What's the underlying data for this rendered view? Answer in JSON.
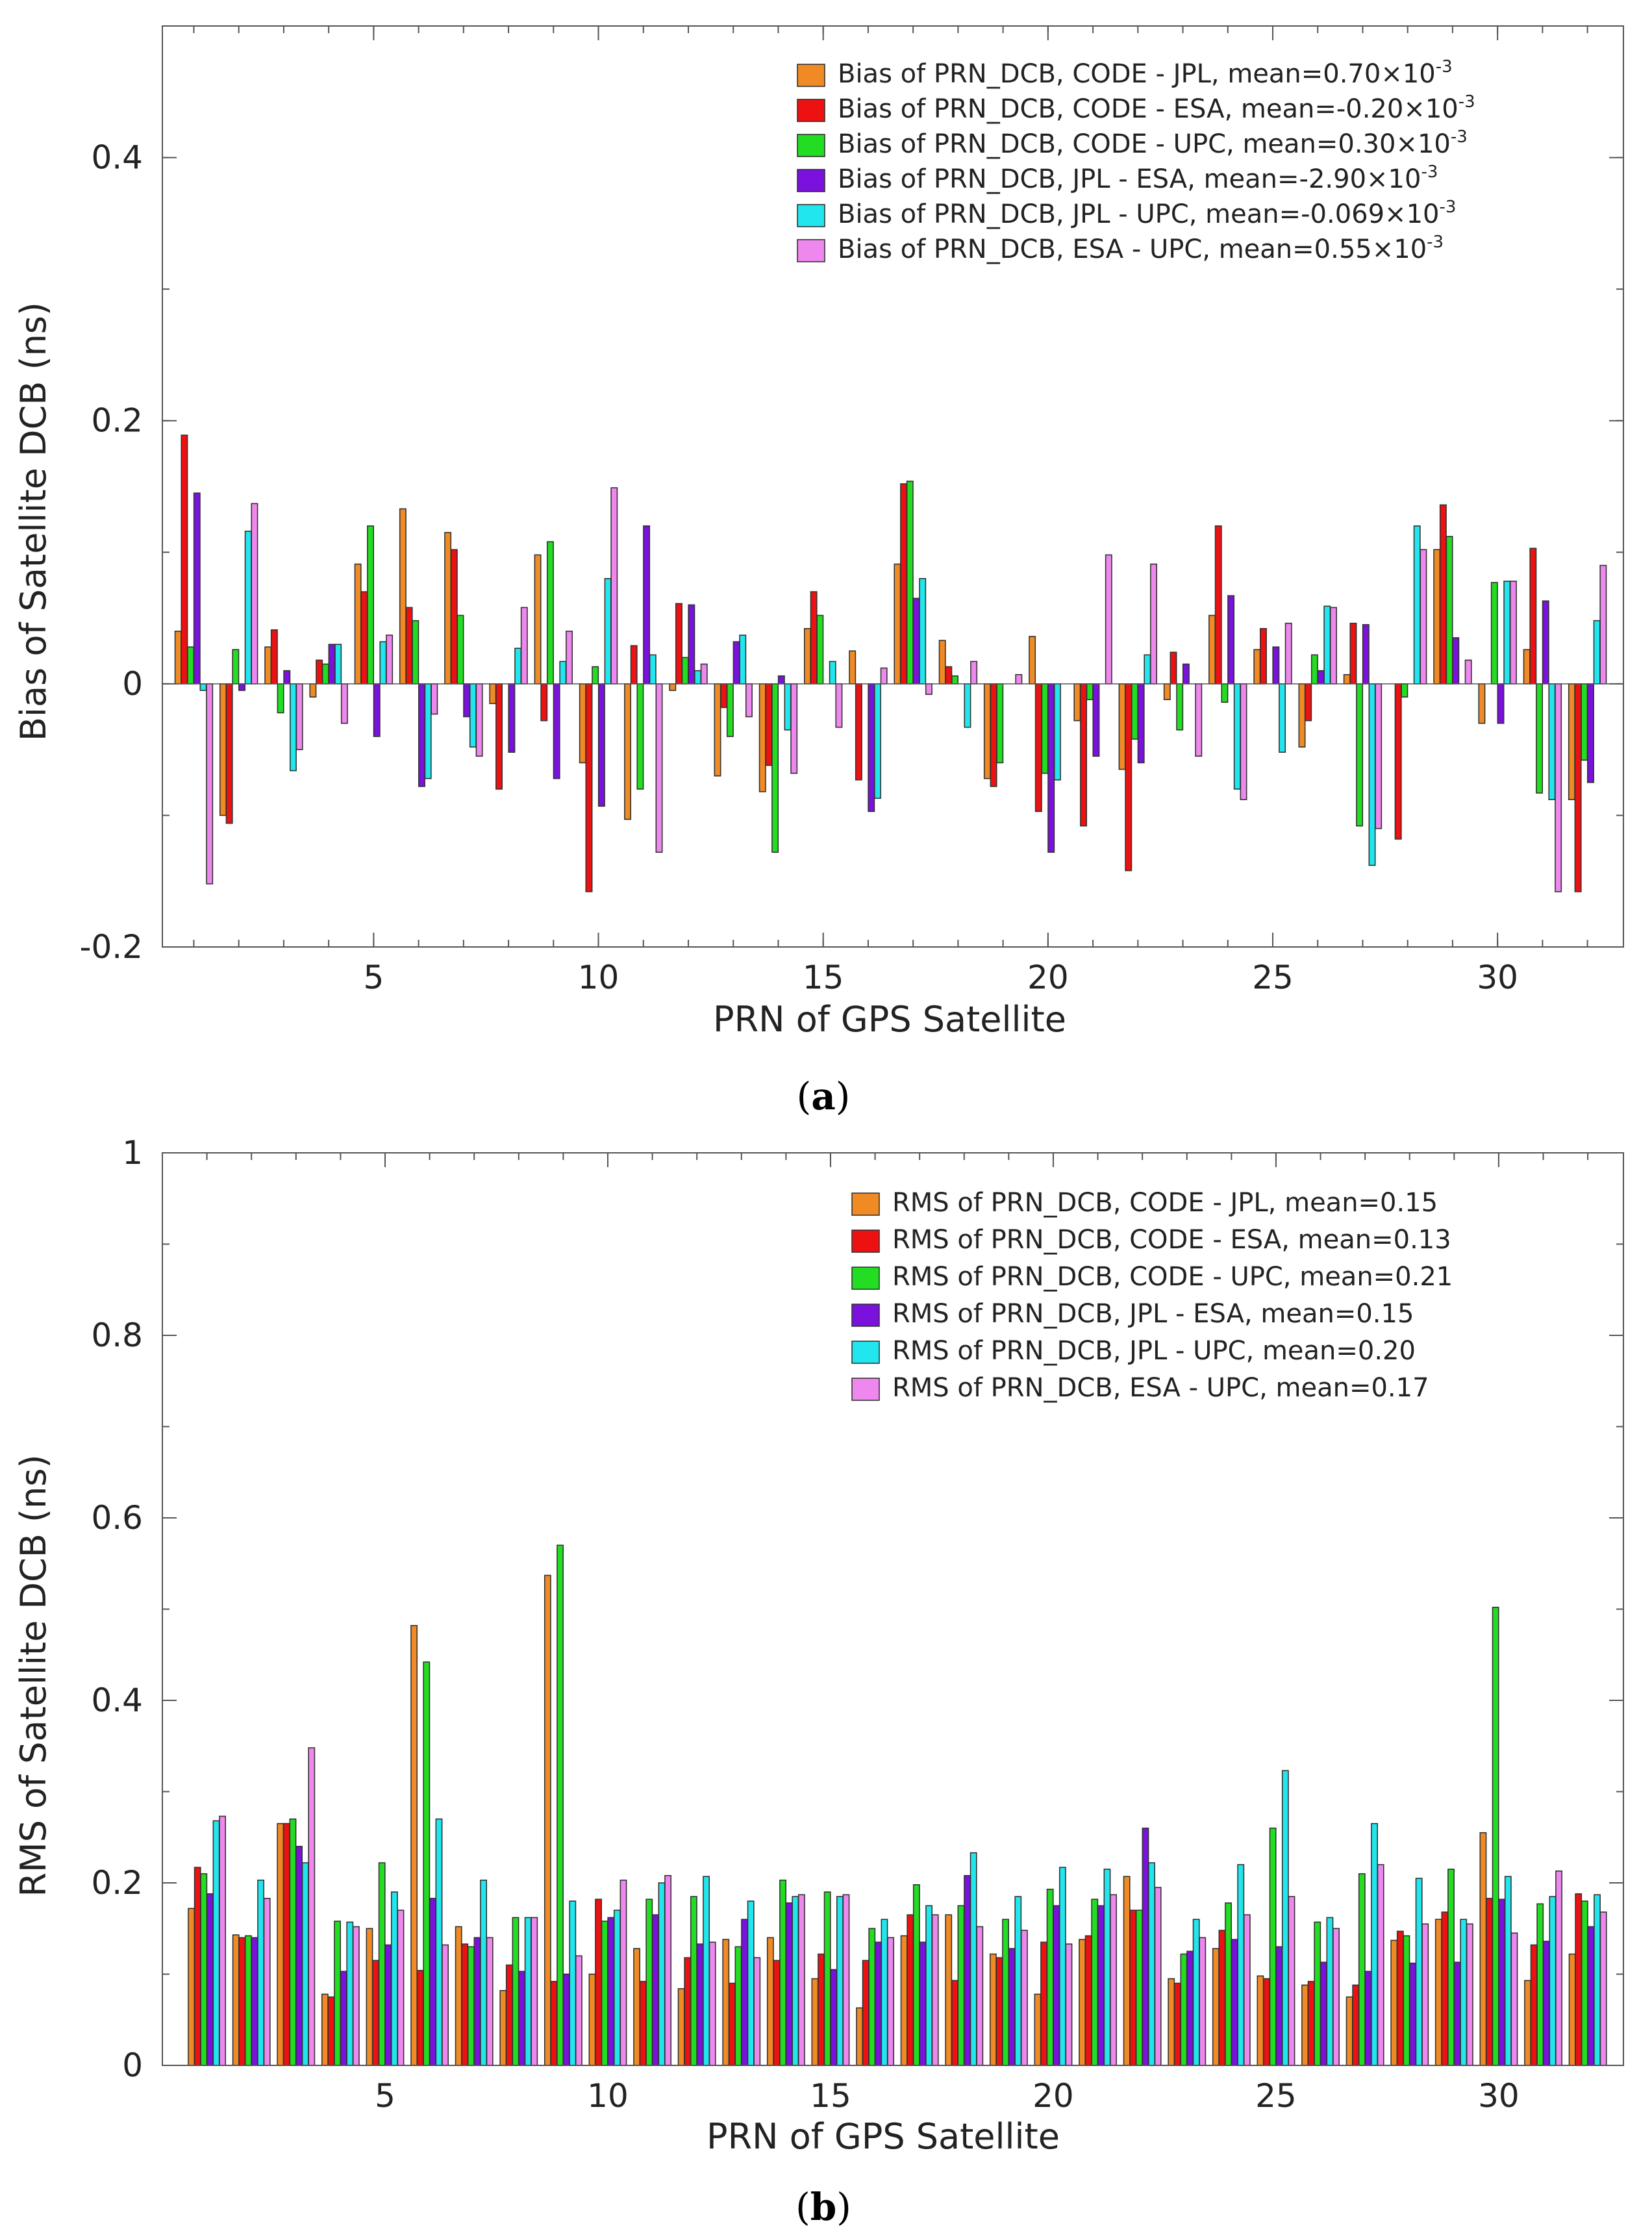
{
  "chart_data": [
    {
      "type": "bar",
      "panel": "a",
      "caption": "(a)",
      "xlabel": "PRN of GPS Satellite",
      "ylabel": "Bias of Satellite DCB (ns)",
      "xlim": [
        0.3,
        32.8
      ],
      "ylim": [
        -0.2,
        0.5
      ],
      "xticks": [
        5,
        10,
        15,
        20,
        25,
        30
      ],
      "yticks": [
        -0.2,
        0,
        0.2,
        0.4
      ],
      "ytick_labels": [
        "-0.2",
        "0",
        "0.2",
        "0.4"
      ],
      "legend_position": "top-right",
      "series": [
        {
          "name": "Bias of PRN_DCB, CODE - JPL, mean=0.70×10",
          "superscript": "-3",
          "color": "#f08a24",
          "values": [
            0.04,
            -0.1,
            0.028,
            -0.01,
            0.091,
            0.133,
            0.115,
            -0.015,
            0.098,
            -0.06,
            -0.103,
            -0.005,
            -0.07,
            -0.082,
            0.042,
            0.025,
            0.091,
            0.033,
            -0.072,
            0.036,
            -0.028,
            -0.065,
            -0.012,
            0.052,
            0.026,
            -0.048,
            0.007,
            0.0,
            0.102,
            -0.03,
            0.026,
            -0.088
          ]
        },
        {
          "name": "Bias of PRN_DCB, CODE - ESA, mean=-0.20×10",
          "superscript": "-3",
          "color": "#ee1111",
          "values": [
            0.189,
            -0.106,
            0.041,
            0.018,
            0.07,
            0.058,
            0.102,
            -0.08,
            -0.028,
            -0.158,
            0.029,
            0.061,
            -0.018,
            -0.062,
            0.07,
            -0.073,
            0.152,
            0.013,
            -0.078,
            -0.097,
            -0.108,
            -0.142,
            0.024,
            0.12,
            0.042,
            -0.028,
            0.046,
            -0.118,
            0.136,
            0.0,
            0.103,
            -0.158
          ]
        },
        {
          "name": "Bias of PRN_DCB, CODE - UPC, mean=0.30×10",
          "superscript": "-3",
          "color": "#22dd22",
          "values": [
            0.028,
            0.026,
            -0.022,
            0.015,
            0.12,
            0.048,
            0.052,
            0.0,
            0.108,
            0.013,
            -0.08,
            0.02,
            -0.04,
            -0.128,
            0.052,
            0.0,
            0.154,
            0.006,
            -0.06,
            -0.068,
            -0.012,
            -0.042,
            -0.035,
            -0.014,
            0.0,
            0.022,
            -0.108,
            -0.01,
            0.112,
            0.077,
            -0.083,
            -0.058
          ]
        },
        {
          "name": "Bias of PRN_DCB, JPL - ESA, mean=-2.90×10",
          "superscript": "-3",
          "color": "#7a11dd",
          "values": [
            0.145,
            -0.005,
            0.01,
            0.03,
            -0.04,
            -0.078,
            -0.025,
            -0.052,
            -0.072,
            -0.093,
            0.12,
            0.06,
            0.032,
            0.006,
            0.0,
            -0.097,
            0.065,
            0.0,
            0.0,
            -0.128,
            -0.055,
            -0.06,
            0.015,
            0.067,
            0.028,
            0.01,
            0.045,
            0.0,
            0.035,
            -0.03,
            0.063,
            -0.075
          ]
        },
        {
          "name": "Bias of PRN_DCB, JPL - UPC, mean=-0.069×10",
          "superscript": "-3",
          "color": "#22e6ee",
          "values": [
            -0.005,
            0.116,
            -0.066,
            0.03,
            0.032,
            -0.072,
            -0.048,
            0.027,
            0.017,
            0.08,
            0.022,
            0.01,
            0.037,
            -0.035,
            0.017,
            -0.087,
            0.08,
            -0.033,
            0.0,
            -0.073,
            0.0,
            0.022,
            0.0,
            -0.08,
            -0.052,
            0.059,
            -0.138,
            0.12,
            0.0,
            0.078,
            -0.088,
            0.048
          ]
        },
        {
          "name": "Bias of PRN_DCB, ESA - UPC, mean=0.55×10",
          "superscript": "-3",
          "color": "#ee88ee",
          "values": [
            -0.152,
            0.137,
            -0.05,
            -0.03,
            0.037,
            -0.023,
            -0.055,
            0.058,
            0.04,
            0.149,
            -0.128,
            0.015,
            -0.025,
            -0.068,
            -0.033,
            0.012,
            -0.008,
            0.017,
            0.007,
            0.0,
            0.098,
            0.091,
            -0.055,
            -0.088,
            0.046,
            0.058,
            -0.11,
            0.102,
            0.018,
            0.078,
            -0.158,
            0.09
          ]
        }
      ]
    },
    {
      "type": "bar",
      "panel": "b",
      "caption": "(b)",
      "xlabel": "PRN of GPS Satellite",
      "ylabel": "RMS of Satellite DCB (ns)",
      "xlim": [
        0.0,
        32.8
      ],
      "ylim": [
        0,
        1
      ],
      "xticks": [
        5,
        10,
        15,
        20,
        25,
        30
      ],
      "yticks": [
        0,
        0.2,
        0.4,
        0.6,
        0.8,
        1
      ],
      "ytick_labels": [
        "0",
        "0.2",
        "0.4",
        "0.6",
        "0.8",
        "1"
      ],
      "legend_position": "top-right",
      "series": [
        {
          "name": "RMS of PRN_DCB, CODE - JPL, mean=0.15",
          "superscript": "",
          "color": "#f08a24",
          "values": [
            0.172,
            0.143,
            0.265,
            0.078,
            0.15,
            0.482,
            0.152,
            0.082,
            0.537,
            0.1,
            0.128,
            0.084,
            0.138,
            0.14,
            0.095,
            0.063,
            0.142,
            0.165,
            0.122,
            0.078,
            0.138,
            0.207,
            0.095,
            0.128,
            0.098,
            0.088,
            0.075,
            0.137,
            0.16,
            0.255,
            0.093,
            0.122
          ]
        },
        {
          "name": "RMS of PRN_DCB, CODE - ESA, mean=0.13",
          "superscript": "",
          "color": "#ee1111",
          "values": [
            0.217,
            0.14,
            0.265,
            0.075,
            0.115,
            0.104,
            0.133,
            0.11,
            0.092,
            0.182,
            0.092,
            0.118,
            0.09,
            0.115,
            0.122,
            0.115,
            0.165,
            0.093,
            0.118,
            0.135,
            0.142,
            0.17,
            0.09,
            0.148,
            0.095,
            0.092,
            0.088,
            0.147,
            0.168,
            0.183,
            0.132,
            0.188
          ]
        },
        {
          "name": "RMS of PRN_DCB, CODE - UPC, mean=0.21",
          "superscript": "",
          "color": "#22dd22",
          "values": [
            0.21,
            0.142,
            0.27,
            0.158,
            0.222,
            0.442,
            0.13,
            0.162,
            0.57,
            0.158,
            0.182,
            0.185,
            0.13,
            0.203,
            0.19,
            0.15,
            0.198,
            0.175,
            0.16,
            0.193,
            0.182,
            0.17,
            0.122,
            0.178,
            0.26,
            0.157,
            0.21,
            0.142,
            0.215,
            0.502,
            0.177,
            0.18
          ]
        },
        {
          "name": "RMS of PRN_DCB, JPL - ESA, mean=0.15",
          "superscript": "",
          "color": "#7a11dd",
          "values": [
            0.188,
            0.14,
            0.24,
            0.103,
            0.132,
            0.183,
            0.14,
            0.103,
            0.1,
            0.162,
            0.165,
            0.133,
            0.16,
            0.178,
            0.105,
            0.135,
            0.135,
            0.208,
            0.128,
            0.175,
            0.175,
            0.26,
            0.125,
            0.138,
            0.13,
            0.113,
            0.103,
            0.112,
            0.113,
            0.182,
            0.136,
            0.152
          ]
        },
        {
          "name": "RMS of PRN_DCB, JPL - UPC, mean=0.20",
          "superscript": "",
          "color": "#22e6ee",
          "values": [
            0.268,
            0.203,
            0.222,
            0.157,
            0.19,
            0.27,
            0.203,
            0.162,
            0.18,
            0.17,
            0.2,
            0.207,
            0.18,
            0.185,
            0.185,
            0.16,
            0.175,
            0.233,
            0.185,
            0.217,
            0.215,
            0.222,
            0.16,
            0.22,
            0.323,
            0.162,
            0.265,
            0.205,
            0.16,
            0.207,
            0.185,
            0.187
          ]
        },
        {
          "name": "RMS of PRN_DCB, ESA - UPC, mean=0.17",
          "superscript": "",
          "color": "#ee88ee",
          "values": [
            0.273,
            0.183,
            0.348,
            0.152,
            0.17,
            0.132,
            0.14,
            0.162,
            0.12,
            0.203,
            0.208,
            0.135,
            0.118,
            0.187,
            0.187,
            0.14,
            0.165,
            0.152,
            0.148,
            0.133,
            0.187,
            0.195,
            0.14,
            0.165,
            0.185,
            0.15,
            0.22,
            0.155,
            0.155,
            0.145,
            0.213,
            0.168
          ]
        }
      ]
    }
  ]
}
